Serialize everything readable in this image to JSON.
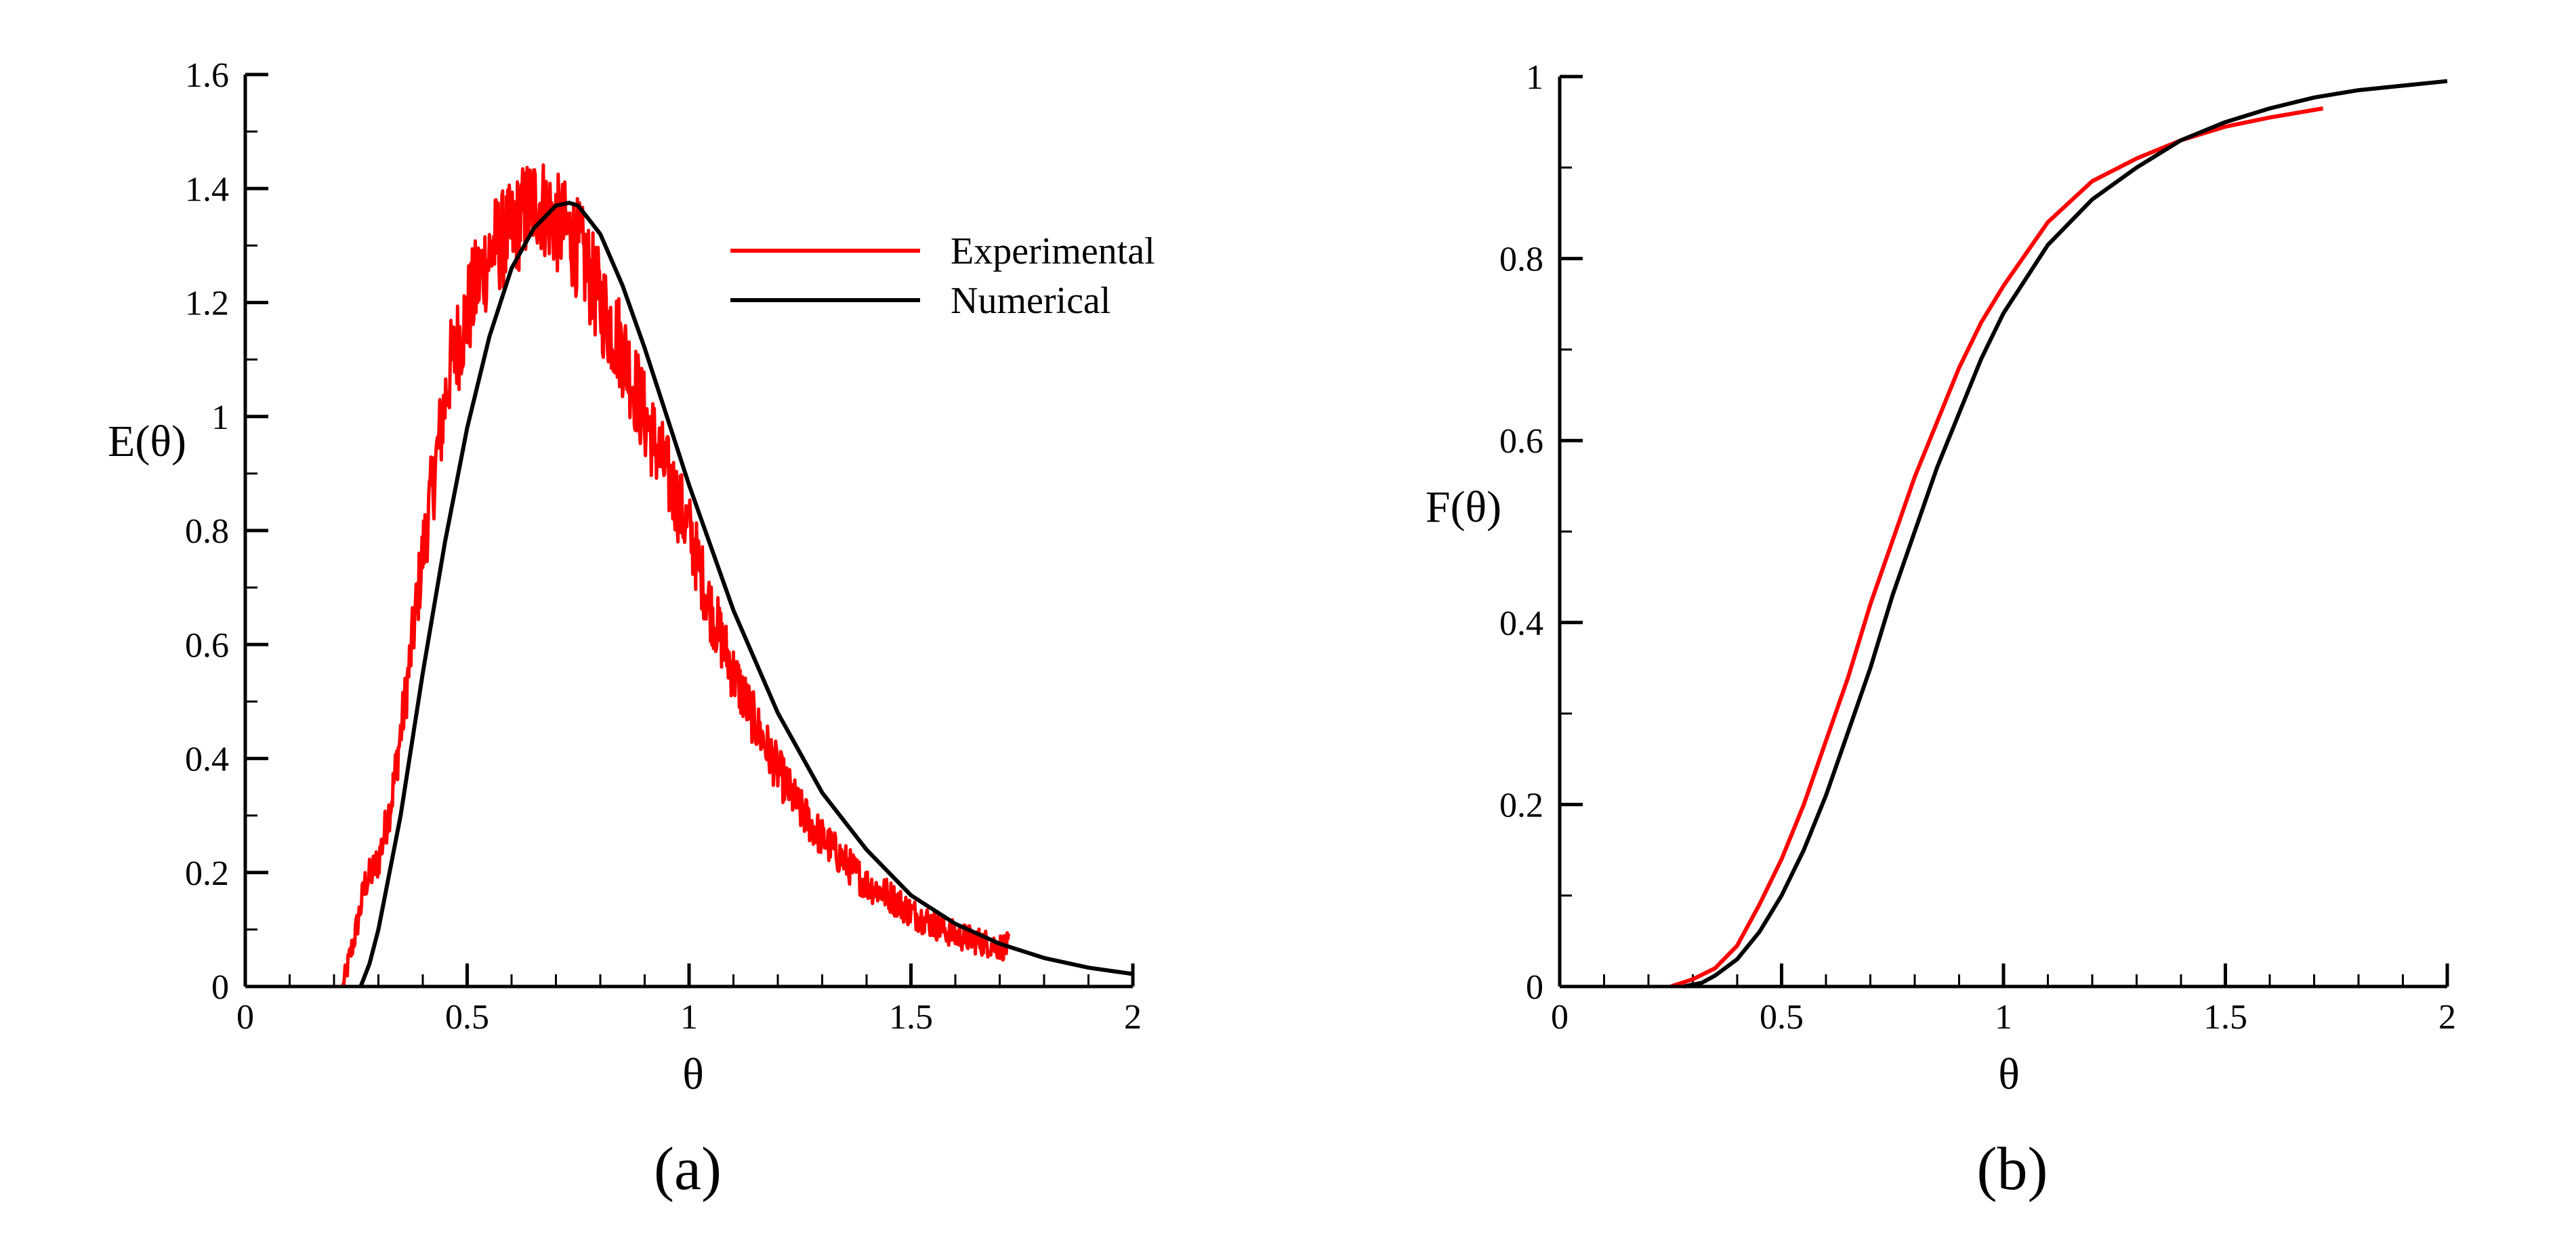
{
  "figure": {
    "captions": [
      "(a)",
      "(b)"
    ]
  },
  "chart_data": [
    {
      "type": "line",
      "panel": "(a)",
      "title": "",
      "xlabel": "θ",
      "ylabel": "E(θ)",
      "xlim": [
        0,
        2
      ],
      "ylim": [
        0,
        1.6
      ],
      "xticks": [
        0,
        0.5,
        1,
        1.5,
        2
      ],
      "xtick_labels": [
        "0",
        "0.5",
        "1",
        "1.5",
        "2"
      ],
      "yticks": [
        0,
        0.2,
        0.4,
        0.6,
        0.8,
        1,
        1.2,
        1.4,
        1.6
      ],
      "ytick_labels": [
        "0",
        "0.2",
        "0.4",
        "0.6",
        "0.8",
        "1",
        "1.2",
        "1.4",
        "1.6"
      ],
      "grid": false,
      "legend": {
        "placement": "top-right"
      },
      "series": [
        {
          "name": "Experimental",
          "color": "#ff0000",
          "noisy": true,
          "x": [
            0.22,
            0.25,
            0.27,
            0.3,
            0.33,
            0.36,
            0.4,
            0.43,
            0.46,
            0.5,
            0.53,
            0.56,
            0.6,
            0.63,
            0.66,
            0.7,
            0.73,
            0.76,
            0.8,
            0.85,
            0.9,
            0.95,
            1.0,
            1.05,
            1.1,
            1.15,
            1.2,
            1.25,
            1.3,
            1.35,
            1.4,
            1.45,
            1.5,
            1.55,
            1.6,
            1.65,
            1.7,
            1.72
          ],
          "y": [
            0.0,
            0.1,
            0.18,
            0.22,
            0.33,
            0.5,
            0.76,
            0.92,
            1.08,
            1.18,
            1.25,
            1.3,
            1.32,
            1.36,
            1.38,
            1.34,
            1.32,
            1.28,
            1.2,
            1.12,
            1.0,
            0.9,
            0.8,
            0.66,
            0.55,
            0.46,
            0.38,
            0.31,
            0.26,
            0.22,
            0.18,
            0.16,
            0.13,
            0.11,
            0.09,
            0.08,
            0.07,
            0.07
          ]
        },
        {
          "name": "Numerical",
          "color": "#000000",
          "noisy": false,
          "x": [
            0.26,
            0.28,
            0.3,
            0.35,
            0.4,
            0.45,
            0.5,
            0.55,
            0.6,
            0.65,
            0.7,
            0.73,
            0.75,
            0.8,
            0.85,
            0.9,
            0.95,
            1.0,
            1.1,
            1.2,
            1.3,
            1.4,
            1.5,
            1.6,
            1.7,
            1.8,
            1.9,
            2.0
          ],
          "y": [
            0.0,
            0.04,
            0.1,
            0.3,
            0.55,
            0.78,
            0.98,
            1.14,
            1.26,
            1.33,
            1.37,
            1.375,
            1.37,
            1.32,
            1.23,
            1.12,
            1.0,
            0.88,
            0.66,
            0.48,
            0.34,
            0.24,
            0.16,
            0.11,
            0.075,
            0.05,
            0.033,
            0.022
          ]
        }
      ]
    },
    {
      "type": "line",
      "panel": "(b)",
      "title": "",
      "xlabel": "θ",
      "ylabel": "F(θ)",
      "xlim": [
        0,
        2
      ],
      "ylim": [
        0,
        1
      ],
      "xticks": [
        0,
        0.5,
        1,
        1.5,
        2
      ],
      "xtick_labels": [
        "0",
        "0.5",
        "1",
        "1.5",
        "2"
      ],
      "yticks": [
        0,
        0.2,
        0.4,
        0.6,
        0.8,
        1
      ],
      "ytick_labels": [
        "0",
        "0.2",
        "0.4",
        "0.6",
        "0.8",
        "1"
      ],
      "grid": false,
      "legend": null,
      "series": [
        {
          "name": "Experimental",
          "color": "#ff0000",
          "noisy": false,
          "x": [
            0.25,
            0.3,
            0.35,
            0.4,
            0.45,
            0.5,
            0.55,
            0.6,
            0.65,
            0.7,
            0.75,
            0.8,
            0.85,
            0.9,
            0.95,
            1.0,
            1.1,
            1.2,
            1.3,
            1.4,
            1.5,
            1.6,
            1.72
          ],
          "y": [
            0.0,
            0.008,
            0.02,
            0.045,
            0.09,
            0.14,
            0.2,
            0.27,
            0.34,
            0.42,
            0.49,
            0.56,
            0.62,
            0.68,
            0.73,
            0.77,
            0.84,
            0.885,
            0.91,
            0.93,
            0.945,
            0.955,
            0.965
          ]
        },
        {
          "name": "Numerical",
          "color": "#000000",
          "noisy": false,
          "x": [
            0.28,
            0.32,
            0.35,
            0.4,
            0.45,
            0.5,
            0.55,
            0.6,
            0.65,
            0.7,
            0.75,
            0.8,
            0.85,
            0.9,
            0.95,
            1.0,
            1.1,
            1.2,
            1.3,
            1.4,
            1.5,
            1.6,
            1.7,
            1.8,
            1.9,
            2.0
          ],
          "y": [
            0.0,
            0.004,
            0.012,
            0.03,
            0.06,
            0.1,
            0.15,
            0.21,
            0.28,
            0.35,
            0.43,
            0.5,
            0.57,
            0.63,
            0.69,
            0.74,
            0.815,
            0.865,
            0.9,
            0.93,
            0.95,
            0.965,
            0.977,
            0.985,
            0.99,
            0.995
          ]
        }
      ]
    }
  ]
}
